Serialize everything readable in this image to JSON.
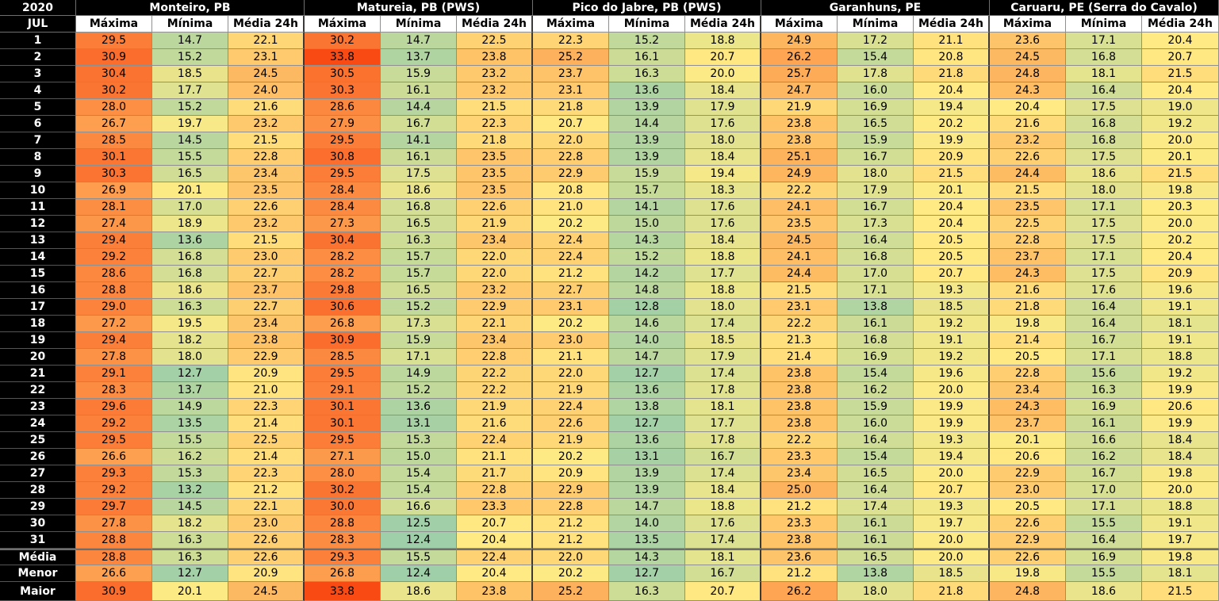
{
  "chart_data": {
    "type": "heatmap",
    "year_label": "2020",
    "month_label": "JUL",
    "metrics": [
      "Máxima",
      "Mínima",
      "Média 24h"
    ],
    "days": [
      "1",
      "2",
      "3",
      "4",
      "5",
      "6",
      "7",
      "8",
      "9",
      "10",
      "11",
      "12",
      "13",
      "14",
      "15",
      "16",
      "17",
      "18",
      "19",
      "20",
      "21",
      "22",
      "23",
      "24",
      "25",
      "26",
      "27",
      "28",
      "29",
      "30",
      "31"
    ],
    "summary_labels": [
      "Média",
      "Menor",
      "Maior"
    ],
    "color_scale": {
      "low": "#9fcfa8",
      "mid": "#ffeb84",
      "high": "#fa4a14"
    },
    "stations": [
      {
        "name": "Monteiro, PB",
        "daily": [
          [
            29.5,
            14.7,
            22.1
          ],
          [
            30.9,
            15.2,
            23.1
          ],
          [
            30.4,
            18.5,
            24.5
          ],
          [
            30.2,
            17.7,
            24.0
          ],
          [
            28.0,
            15.2,
            21.6
          ],
          [
            26.7,
            19.7,
            23.2
          ],
          [
            28.5,
            14.5,
            21.5
          ],
          [
            30.1,
            15.5,
            22.8
          ],
          [
            30.3,
            16.5,
            23.4
          ],
          [
            26.9,
            20.1,
            23.5
          ],
          [
            28.1,
            17.0,
            22.6
          ],
          [
            27.4,
            18.9,
            23.2
          ],
          [
            29.4,
            13.6,
            21.5
          ],
          [
            29.2,
            16.8,
            23.0
          ],
          [
            28.6,
            16.8,
            22.7
          ],
          [
            28.8,
            18.6,
            23.7
          ],
          [
            29.0,
            16.3,
            22.7
          ],
          [
            27.2,
            19.5,
            23.4
          ],
          [
            29.4,
            18.2,
            23.8
          ],
          [
            27.8,
            18.0,
            22.9
          ],
          [
            29.1,
            12.7,
            20.9
          ],
          [
            28.3,
            13.7,
            21.0
          ],
          [
            29.6,
            14.9,
            22.3
          ],
          [
            29.2,
            13.5,
            21.4
          ],
          [
            29.5,
            15.5,
            22.5
          ],
          [
            26.6,
            16.2,
            21.4
          ],
          [
            29.3,
            15.3,
            22.3
          ],
          [
            29.2,
            13.2,
            21.2
          ],
          [
            29.7,
            14.5,
            22.1
          ],
          [
            27.8,
            18.2,
            23.0
          ],
          [
            28.8,
            16.3,
            22.6
          ]
        ],
        "summary": [
          [
            28.8,
            16.3,
            22.6
          ],
          [
            26.6,
            12.7,
            20.9
          ],
          [
            30.9,
            20.1,
            24.5
          ]
        ]
      },
      {
        "name": "Matureia, PB (PWS)",
        "daily": [
          [
            30.2,
            14.7,
            22.5
          ],
          [
            33.8,
            13.7,
            23.8
          ],
          [
            30.5,
            15.9,
            23.2
          ],
          [
            30.3,
            16.1,
            23.2
          ],
          [
            28.6,
            14.4,
            21.5
          ],
          [
            27.9,
            16.7,
            22.3
          ],
          [
            29.5,
            14.1,
            21.8
          ],
          [
            30.8,
            16.1,
            23.5
          ],
          [
            29.5,
            17.5,
            23.5
          ],
          [
            28.4,
            18.6,
            23.5
          ],
          [
            28.4,
            16.8,
            22.6
          ],
          [
            27.3,
            16.5,
            21.9
          ],
          [
            30.4,
            16.3,
            23.4
          ],
          [
            28.2,
            15.7,
            22.0
          ],
          [
            28.2,
            15.7,
            22.0
          ],
          [
            29.8,
            16.5,
            23.2
          ],
          [
            30.6,
            15.2,
            22.9
          ],
          [
            26.8,
            17.3,
            22.1
          ],
          [
            30.9,
            15.9,
            23.4
          ],
          [
            28.5,
            17.1,
            22.8
          ],
          [
            29.5,
            14.9,
            22.2
          ],
          [
            29.1,
            15.2,
            22.2
          ],
          [
            30.1,
            13.6,
            21.9
          ],
          [
            30.1,
            13.1,
            21.6
          ],
          [
            29.5,
            15.3,
            22.4
          ],
          [
            27.1,
            15.0,
            21.1
          ],
          [
            28.0,
            15.4,
            21.7
          ],
          [
            30.2,
            15.4,
            22.8
          ],
          [
            30.0,
            16.6,
            23.3
          ],
          [
            28.8,
            12.5,
            20.7
          ],
          [
            28.3,
            12.4,
            20.4
          ]
        ],
        "summary": [
          [
            29.3,
            15.5,
            22.4
          ],
          [
            26.8,
            12.4,
            20.4
          ],
          [
            33.8,
            18.6,
            23.8
          ]
        ]
      },
      {
        "name": "Pico do Jabre, PB (PWS)",
        "daily": [
          [
            22.3,
            15.2,
            18.8
          ],
          [
            25.2,
            16.1,
            20.7
          ],
          [
            23.7,
            16.3,
            20.0
          ],
          [
            23.1,
            13.6,
            18.4
          ],
          [
            21.8,
            13.9,
            17.9
          ],
          [
            20.7,
            14.4,
            17.6
          ],
          [
            22.0,
            13.9,
            18.0
          ],
          [
            22.8,
            13.9,
            18.4
          ],
          [
            22.9,
            15.9,
            19.4
          ],
          [
            20.8,
            15.7,
            18.3
          ],
          [
            21.0,
            14.1,
            17.6
          ],
          [
            20.2,
            15.0,
            17.6
          ],
          [
            22.4,
            14.3,
            18.4
          ],
          [
            22.4,
            15.2,
            18.8
          ],
          [
            21.2,
            14.2,
            17.7
          ],
          [
            22.7,
            14.8,
            18.8
          ],
          [
            23.1,
            12.8,
            18.0
          ],
          [
            20.2,
            14.6,
            17.4
          ],
          [
            23.0,
            14.0,
            18.5
          ],
          [
            21.1,
            14.7,
            17.9
          ],
          [
            22.0,
            12.7,
            17.4
          ],
          [
            21.9,
            13.6,
            17.8
          ],
          [
            22.4,
            13.8,
            18.1
          ],
          [
            22.6,
            12.7,
            17.7
          ],
          [
            21.9,
            13.6,
            17.8
          ],
          [
            20.2,
            13.1,
            16.7
          ],
          [
            20.9,
            13.9,
            17.4
          ],
          [
            22.9,
            13.9,
            18.4
          ],
          [
            22.8,
            14.7,
            18.8
          ],
          [
            21.2,
            14.0,
            17.6
          ],
          [
            21.2,
            13.5,
            17.4
          ]
        ],
        "summary": [
          [
            22.0,
            14.3,
            18.1
          ],
          [
            20.2,
            12.7,
            16.7
          ],
          [
            25.2,
            16.3,
            20.7
          ]
        ]
      },
      {
        "name": "Garanhuns, PE",
        "daily": [
          [
            24.9,
            17.2,
            21.1
          ],
          [
            26.2,
            15.4,
            20.8
          ],
          [
            25.7,
            17.8,
            21.8
          ],
          [
            24.7,
            16.0,
            20.4
          ],
          [
            21.9,
            16.9,
            19.4
          ],
          [
            23.8,
            16.5,
            20.2
          ],
          [
            23.8,
            15.9,
            19.9
          ],
          [
            25.1,
            16.7,
            20.9
          ],
          [
            24.9,
            18.0,
            21.5
          ],
          [
            22.2,
            17.9,
            20.1
          ],
          [
            24.1,
            16.7,
            20.4
          ],
          [
            23.5,
            17.3,
            20.4
          ],
          [
            24.5,
            16.4,
            20.5
          ],
          [
            24.1,
            16.8,
            20.5
          ],
          [
            24.4,
            17.0,
            20.7
          ],
          [
            21.5,
            17.1,
            19.3
          ],
          [
            23.1,
            13.8,
            18.5
          ],
          [
            22.2,
            16.1,
            19.2
          ],
          [
            21.3,
            16.8,
            19.1
          ],
          [
            21.4,
            16.9,
            19.2
          ],
          [
            23.8,
            15.4,
            19.6
          ],
          [
            23.8,
            16.2,
            20.0
          ],
          [
            23.8,
            15.9,
            19.9
          ],
          [
            23.8,
            16.0,
            19.9
          ],
          [
            22.2,
            16.4,
            19.3
          ],
          [
            23.3,
            15.4,
            19.4
          ],
          [
            23.4,
            16.5,
            20.0
          ],
          [
            25.0,
            16.4,
            20.7
          ],
          [
            21.2,
            17.4,
            19.3
          ],
          [
            23.3,
            16.1,
            19.7
          ],
          [
            23.8,
            16.1,
            20.0
          ]
        ],
        "summary": [
          [
            23.6,
            16.5,
            20.0
          ],
          [
            21.2,
            13.8,
            18.5
          ],
          [
            26.2,
            18.0,
            21.8
          ]
        ]
      },
      {
        "name": "Caruaru, PE (Serra do Cavalo)",
        "daily": [
          [
            23.6,
            17.1,
            20.4
          ],
          [
            24.5,
            16.8,
            20.7
          ],
          [
            24.8,
            18.1,
            21.5
          ],
          [
            24.3,
            16.4,
            20.4
          ],
          [
            20.4,
            17.5,
            19.0
          ],
          [
            21.6,
            16.8,
            19.2
          ],
          [
            23.2,
            16.8,
            20.0
          ],
          [
            22.6,
            17.5,
            20.1
          ],
          [
            24.4,
            18.6,
            21.5
          ],
          [
            21.5,
            18.0,
            19.8
          ],
          [
            23.5,
            17.1,
            20.3
          ],
          [
            22.5,
            17.5,
            20.0
          ],
          [
            22.8,
            17.5,
            20.2
          ],
          [
            23.7,
            17.1,
            20.4
          ],
          [
            24.3,
            17.5,
            20.9
          ],
          [
            21.6,
            17.6,
            19.6
          ],
          [
            21.8,
            16.4,
            19.1
          ],
          [
            19.8,
            16.4,
            18.1
          ],
          [
            21.4,
            16.7,
            19.1
          ],
          [
            20.5,
            17.1,
            18.8
          ],
          [
            22.8,
            15.6,
            19.2
          ],
          [
            23.4,
            16.3,
            19.9
          ],
          [
            24.3,
            16.9,
            20.6
          ],
          [
            23.7,
            16.1,
            19.9
          ],
          [
            20.1,
            16.6,
            18.4
          ],
          [
            20.6,
            16.2,
            18.4
          ],
          [
            22.9,
            16.7,
            19.8
          ],
          [
            23.0,
            17.0,
            20.0
          ],
          [
            20.5,
            17.1,
            18.8
          ],
          [
            22.6,
            15.5,
            19.1
          ],
          [
            22.9,
            16.4,
            19.7
          ]
        ],
        "summary": [
          [
            22.6,
            16.9,
            19.8
          ],
          [
            19.8,
            15.5,
            18.1
          ],
          [
            24.8,
            18.6,
            21.5
          ]
        ]
      }
    ]
  }
}
